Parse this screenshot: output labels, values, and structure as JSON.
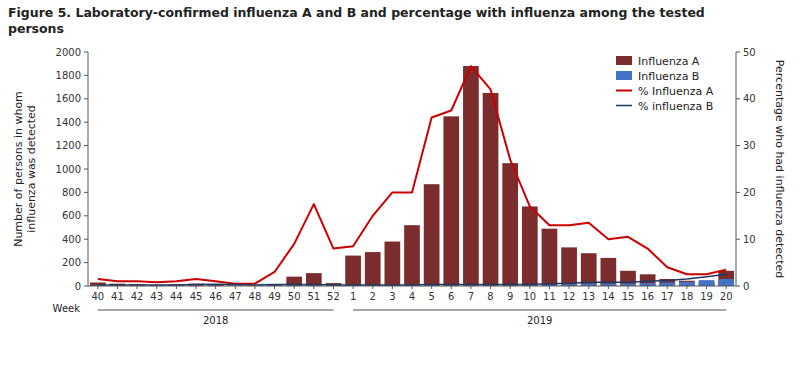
{
  "chart_data": {
    "type": "bar",
    "title": "Figure 5. Laboratory-confirmed influenza A and B and percentage with influenza among the tested\npersons",
    "xlabel": "Week",
    "ylabel": "Number of persons in whom\ninfluenza was detected",
    "y2label": "Percentage who had influenza detected",
    "categories": [
      "40",
      "41",
      "42",
      "43",
      "44",
      "45",
      "46",
      "47",
      "48",
      "49",
      "50",
      "51",
      "52",
      "1",
      "2",
      "3",
      "4",
      "5",
      "6",
      "7",
      "8",
      "9",
      "10",
      "11",
      "12",
      "13",
      "14",
      "15",
      "16",
      "17",
      "18",
      "19",
      "20"
    ],
    "series": [
      {
        "name": "Influenza A",
        "type": "bar",
        "color": "#7B2D2D",
        "values": [
          30,
          20,
          15,
          10,
          15,
          20,
          10,
          5,
          5,
          15,
          80,
          110,
          25,
          260,
          290,
          380,
          520,
          870,
          1450,
          1880,
          1650,
          1050,
          680,
          490,
          330,
          280,
          240,
          130,
          100,
          60,
          45,
          35,
          130
        ]
      },
      {
        "name": "Influenza B",
        "type": "bar",
        "color": "#4472C4",
        "values": [
          5,
          3,
          2,
          2,
          3,
          5,
          5,
          3,
          2,
          5,
          5,
          5,
          3,
          5,
          5,
          5,
          5,
          5,
          5,
          5,
          5,
          5,
          5,
          10,
          15,
          20,
          20,
          20,
          25,
          30,
          35,
          50,
          60
        ]
      },
      {
        "name": "% Influenza A",
        "type": "line",
        "axis": "y2",
        "color": "#CC0000",
        "values": [
          1.5,
          1.0,
          1.0,
          0.8,
          1.0,
          1.5,
          1.0,
          0.5,
          0.5,
          3.0,
          9.0,
          17.5,
          8.0,
          8.5,
          15.0,
          20.0,
          20.0,
          36.0,
          37.5,
          47.0,
          42.0,
          27.0,
          17.0,
          13.0,
          13.0,
          13.5,
          10.0,
          10.5,
          8.0,
          4.0,
          2.5,
          2.5,
          3.5
        ]
      },
      {
        "name": "% influenza B",
        "type": "line",
        "axis": "y2",
        "color": "#1F3864",
        "values": [
          0.2,
          0.2,
          0.2,
          0.2,
          0.2,
          0.3,
          0.4,
          0.3,
          0.2,
          0.3,
          0.3,
          0.3,
          0.2,
          0.2,
          0.2,
          0.2,
          0.2,
          0.3,
          0.3,
          0.3,
          0.3,
          0.3,
          0.3,
          0.5,
          0.6,
          0.8,
          0.8,
          0.8,
          1.0,
          1.2,
          1.5,
          2.0,
          2.5
        ]
      }
    ],
    "ylim": [
      0,
      2000
    ],
    "yticks": [
      0,
      200,
      400,
      600,
      800,
      1000,
      1200,
      1400,
      1600,
      1800,
      2000
    ],
    "y2lim": [
      0,
      50
    ],
    "y2ticks": [
      0,
      10,
      20,
      30,
      40,
      50
    ],
    "annotations": [
      {
        "text": "2018",
        "x_start": "40",
        "x_end": "52"
      },
      {
        "text": "2019",
        "x_start": "1",
        "x_end": "20"
      }
    ],
    "grid": false,
    "legend": "upper right"
  }
}
